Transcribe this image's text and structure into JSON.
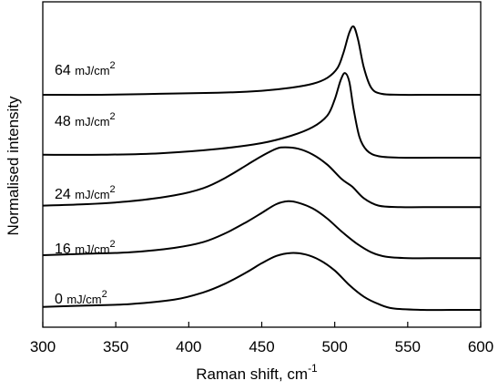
{
  "chart_data": {
    "type": "line",
    "xlabel": "Raman shift, cm",
    "xlabel_superscript": "-1",
    "ylabel": "Normalised intensity",
    "xlim": [
      300,
      600
    ],
    "xticks": [
      "300",
      "350",
      "400",
      "450",
      "500",
      "550",
      "600"
    ],
    "yticks_labeled": false,
    "grid": false,
    "legend": "none (series labeled inline)",
    "series": [
      {
        "name": "0 mJ/cm2",
        "label_value": "0",
        "label_unit": "mJ/cm",
        "label_sup": "2",
        "x": [
          300,
          330,
          360,
          390,
          410,
          425,
          440,
          450,
          460,
          470,
          480,
          490,
          500,
          510,
          520,
          530,
          540,
          560,
          580,
          600
        ],
        "y": [
          0.02,
          0.03,
          0.04,
          0.07,
          0.12,
          0.18,
          0.26,
          0.32,
          0.37,
          0.39,
          0.38,
          0.34,
          0.27,
          0.17,
          0.09,
          0.04,
          0.01,
          0.0,
          0.0,
          0.0
        ]
      },
      {
        "name": "16 mJ/cm2",
        "label_value": "16",
        "label_unit": "mJ/cm",
        "label_sup": "2",
        "x": [
          300,
          330,
          360,
          390,
          410,
          425,
          440,
          450,
          460,
          468,
          475,
          485,
          495,
          505,
          515,
          525,
          535,
          550,
          575,
          600
        ],
        "y": [
          0.1,
          0.11,
          0.12,
          0.15,
          0.19,
          0.25,
          0.33,
          0.39,
          0.45,
          0.47,
          0.46,
          0.42,
          0.35,
          0.26,
          0.18,
          0.12,
          0.09,
          0.08,
          0.08,
          0.08
        ]
      },
      {
        "name": "24 mJ/cm2",
        "label_value": "24",
        "label_unit": "mJ/cm",
        "label_sup": "2",
        "x": [
          300,
          330,
          360,
          390,
          410,
          425,
          440,
          450,
          460,
          466,
          475,
          485,
          495,
          505,
          512,
          520,
          530,
          545,
          570,
          600
        ],
        "y": [
          0.09,
          0.1,
          0.12,
          0.16,
          0.21,
          0.28,
          0.37,
          0.43,
          0.48,
          0.49,
          0.48,
          0.44,
          0.37,
          0.27,
          0.22,
          0.14,
          0.09,
          0.08,
          0.08,
          0.08
        ]
      },
      {
        "name": "48 mJ/cm2",
        "label_value": "48",
        "label_unit": "mJ/cm",
        "label_sup": "2",
        "x": [
          300,
          340,
          380,
          420,
          450,
          470,
          485,
          495,
          500,
          504,
          507,
          510,
          513,
          517,
          522,
          530,
          545,
          570,
          600
        ],
        "y": [
          0.02,
          0.02,
          0.03,
          0.06,
          0.1,
          0.15,
          0.21,
          0.29,
          0.4,
          0.53,
          0.58,
          0.52,
          0.33,
          0.14,
          0.05,
          0.01,
          0.0,
          0.0,
          0.0
        ]
      },
      {
        "name": "64 mJ/cm2",
        "label_value": "64",
        "label_unit": "mJ/cm",
        "label_sup": "2",
        "x": [
          300,
          340,
          380,
          420,
          450,
          470,
          485,
          495,
          502,
          506,
          510,
          513,
          516,
          520,
          525,
          532,
          545,
          570,
          600
        ],
        "y": [
          0.0,
          0.0,
          0.01,
          0.02,
          0.04,
          0.07,
          0.11,
          0.17,
          0.27,
          0.42,
          0.62,
          0.68,
          0.55,
          0.27,
          0.07,
          0.01,
          0.0,
          0.0,
          0.0
        ]
      }
    ]
  }
}
